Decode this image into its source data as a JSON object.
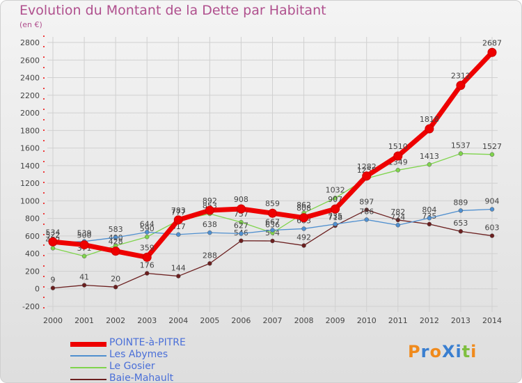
{
  "title": "Evolution du Montant de la Dette par Habitant",
  "unit": "(en €)",
  "logo": "ProXiti",
  "chart_data": {
    "type": "line",
    "title": "Evolution du Montant de la Dette par Habitant",
    "ylabel": "(en €)",
    "ylim": [
      -200,
      2800
    ],
    "yticks": [
      -200,
      0,
      200,
      400,
      600,
      800,
      1000,
      1200,
      1400,
      1600,
      1800,
      2000,
      2200,
      2400,
      2600,
      2800
    ],
    "x": [
      2000,
      2001,
      2002,
      2003,
      2004,
      2005,
      2006,
      2007,
      2008,
      2009,
      2010,
      2011,
      2012,
      2013,
      2014
    ],
    "grid": true,
    "legend_position": "bottom-left",
    "series": [
      {
        "name": "POINTE-à-PITRE",
        "color": "#ee0000",
        "values": [
          534,
          500,
          428,
          359,
          783,
          892,
          908,
          859,
          808,
          907,
          1282,
          1510,
          1818,
          2312,
          2687
        ]
      },
      {
        "name": "Les Abymes",
        "color": "#4f8fcf",
        "values": [
          522,
          539,
          583,
          644,
          617,
          638,
          627,
          667,
          683,
          735,
          786,
          724,
          804,
          889,
          904
        ]
      },
      {
        "name": "Le Gosier",
        "color": "#7fd44c",
        "values": [
          462,
          371,
          490,
          590,
          777,
          853,
          757,
          636,
          862,
          1032,
          1255,
          1349,
          1413,
          1537,
          1527
        ]
      },
      {
        "name": "Baie-Mahault",
        "color": "#6b1f1f",
        "values": [
          9,
          41,
          20,
          176,
          144,
          288,
          546,
          544,
          492,
          718,
          897,
          782,
          735,
          653,
          603
        ]
      }
    ]
  },
  "colors": {
    "title": "#b0508e",
    "legend_text": "#4a6fd8",
    "grid": "#d0d0d0",
    "tick_red": "#ee0000"
  }
}
